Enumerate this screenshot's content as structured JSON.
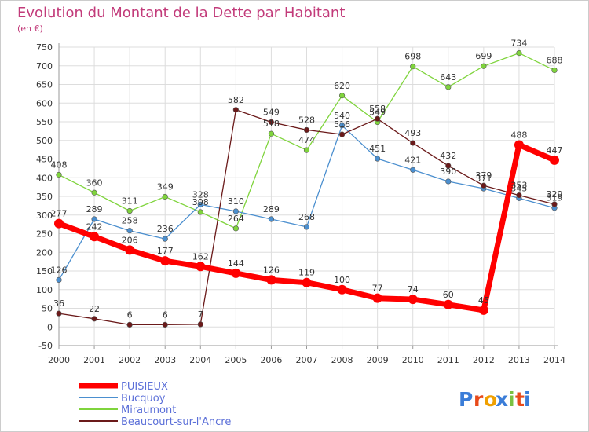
{
  "chart_data": {
    "type": "line",
    "title": "Evolution du Montant de la Dette par Habitant",
    "subtitle": "(en €)",
    "xlabel": "",
    "ylabel": "",
    "x": [
      "2000",
      "2001",
      "2002",
      "2003",
      "2004",
      "2005",
      "2006",
      "2007",
      "2008",
      "2009",
      "2010",
      "2011",
      "2012",
      "2013",
      "2014"
    ],
    "ylim": [
      -50,
      750
    ],
    "yticks": [
      -50,
      0,
      50,
      100,
      150,
      200,
      250,
      300,
      350,
      400,
      450,
      500,
      550,
      600,
      650,
      700,
      750
    ],
    "grid": true,
    "legend_position": "bottom-left",
    "series": [
      {
        "name": "PUISIEUX",
        "color": "#ff0000",
        "values": [
          277,
          242,
          206,
          177,
          162,
          144,
          126,
          119,
          100,
          77,
          74,
          60,
          45,
          488,
          447
        ]
      },
      {
        "name": "Bucquoy",
        "color": "#4b8fcf",
        "values": [
          126,
          289,
          258,
          236,
          328,
          310,
          289,
          268,
          540,
          451,
          421,
          390,
          371,
          345,
          319
        ]
      },
      {
        "name": "Miraumont",
        "color": "#7fd43c",
        "values": [
          408,
          360,
          311,
          349,
          308,
          264,
          518,
          474,
          620,
          549,
          698,
          643,
          699,
          734,
          688
        ]
      },
      {
        "name": "Beaucourt-sur-l'Ancre",
        "color": "#6b1a1a",
        "values": [
          36,
          22,
          6,
          6,
          7,
          582,
          549,
          528,
          516,
          558,
          493,
          432,
          379,
          353,
          329
        ]
      }
    ]
  },
  "logo": {
    "text": "Proxiti",
    "colors": [
      "#3b7dd8",
      "#e84a1a",
      "#f0a000",
      "#3b7dd8",
      "#7ac142",
      "#e84a1a",
      "#3b7dd8"
    ]
  }
}
